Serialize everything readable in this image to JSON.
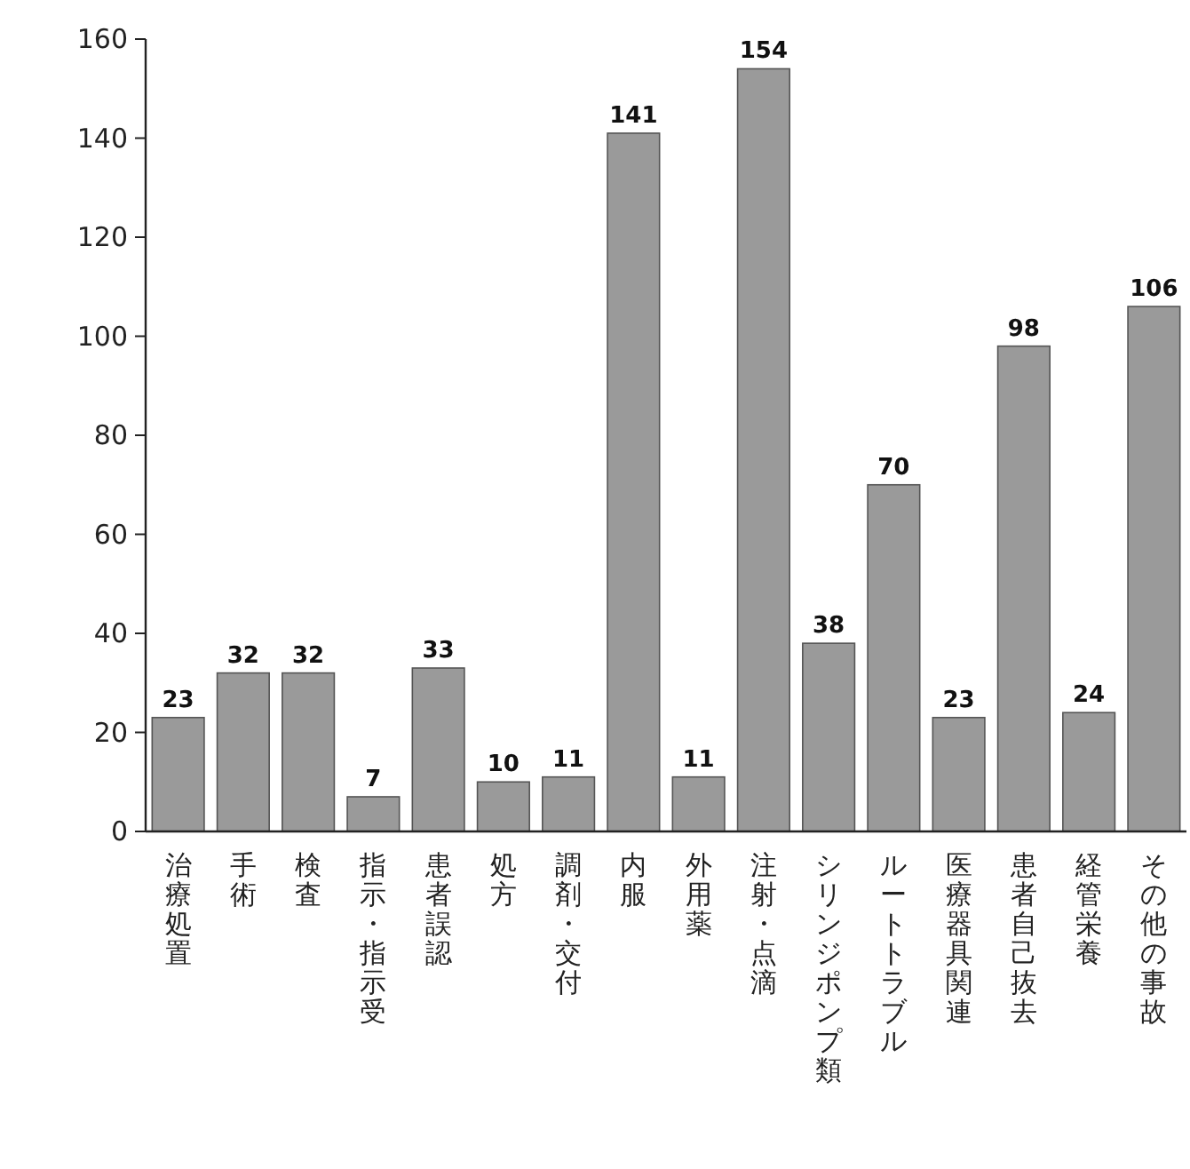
{
  "chart_data": {
    "type": "bar",
    "categories": [
      "治療処置",
      "手術",
      "検査",
      "指示・指示受",
      "患者誤認",
      "処方",
      "調剤・交付",
      "内服",
      "外用薬",
      "注射・点滴",
      "シリンジポンプ類",
      "ルートトラブル",
      "医療器具関連",
      "患者自己抜去",
      "経管栄養",
      "その他の事故"
    ],
    "values": [
      23,
      32,
      32,
      7,
      33,
      10,
      11,
      141,
      11,
      154,
      38,
      70,
      23,
      98,
      24,
      106
    ],
    "color": "#9a9a9a",
    "ylim": [
      0,
      160
    ],
    "yticks": [
      0,
      20,
      40,
      60,
      80,
      100,
      120,
      140,
      160
    ],
    "data_labels": true
  }
}
